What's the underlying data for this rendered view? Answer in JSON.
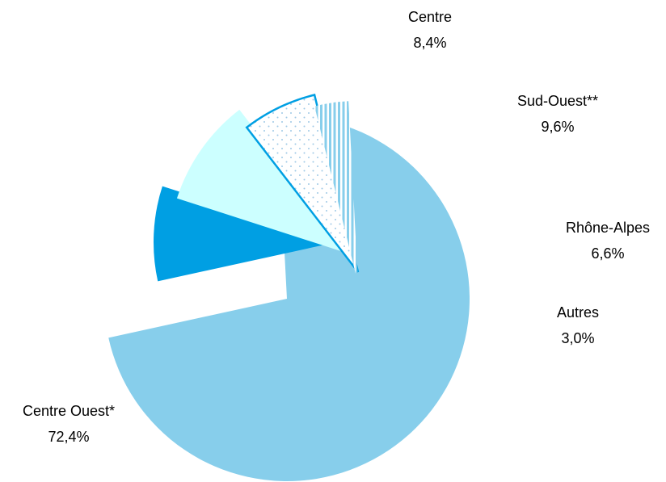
{
  "chart_data": {
    "type": "pie",
    "title": "",
    "legend": "none",
    "slices": [
      {
        "name": "Centre Ouest*",
        "value": 72.4,
        "label": "72,4%",
        "color": "#87CEEB",
        "pattern": "solid"
      },
      {
        "name": "Centre",
        "value": 8.4,
        "label": "8,4%",
        "color": "#009FE3",
        "pattern": "solid"
      },
      {
        "name": "Sud-Ouest**",
        "value": 9.6,
        "label": "9,6%",
        "color": "#CCFFFF",
        "pattern": "solid"
      },
      {
        "name": "Rhône-Alpes",
        "value": 6.6,
        "label": "6,6%",
        "color": "#009FE3",
        "pattern": "dots"
      },
      {
        "name": "Autres",
        "value": 3.0,
        "label": "3,0%",
        "color": "#87CEEB",
        "pattern": "vertical-stripes"
      }
    ]
  }
}
